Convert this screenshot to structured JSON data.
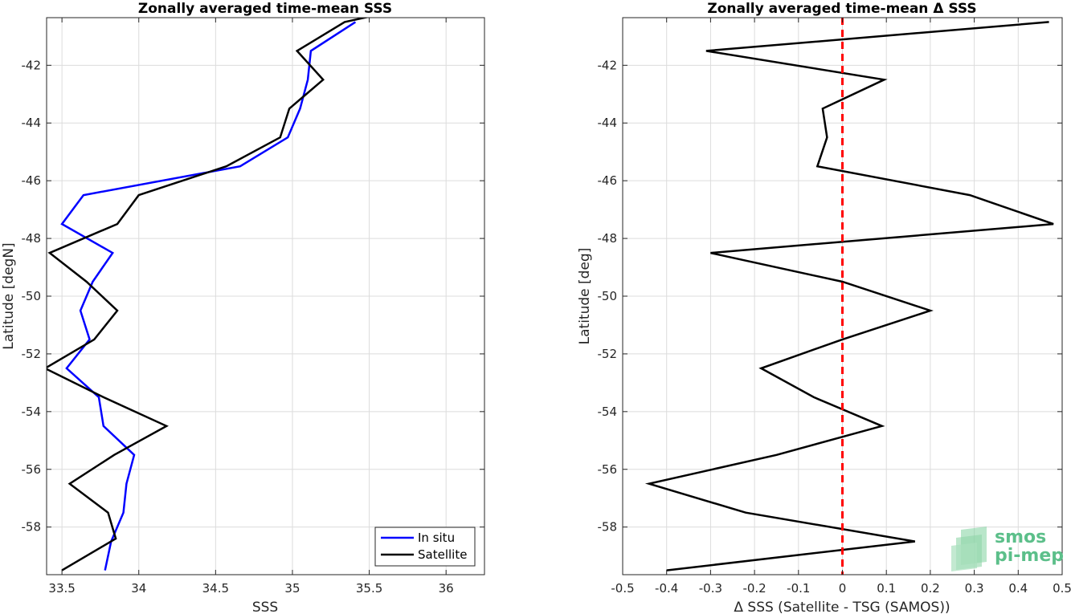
{
  "chart_data": [
    {
      "type": "line",
      "title": "Zonally averaged time-mean SSS",
      "xlabel": "SSS",
      "ylabel": "Latitude [degN]",
      "xlim": [
        33.4,
        36.25
      ],
      "ylim": [
        -59.65,
        -40.35
      ],
      "xticks": [
        33.5,
        34,
        34.5,
        35,
        35.5,
        36
      ],
      "xtick_labels": [
        "33.5",
        "34",
        "34.5",
        "35",
        "35.5",
        "36"
      ],
      "yticks": [
        -58,
        -56,
        -54,
        -52,
        -50,
        -48,
        -46,
        -44,
        -42
      ],
      "ytick_labels": [
        "-58",
        "-56",
        "-54",
        "-52",
        "-50",
        "-48",
        "-46",
        "-44",
        "-42"
      ],
      "grid": true,
      "legend_position": "bottom-right",
      "series": [
        {
          "name": "In situ",
          "color": "#0000ff",
          "points": [
            [
              35.41,
              -40.5
            ],
            [
              35.12,
              -41.5
            ],
            [
              35.1,
              -42.5
            ],
            [
              35.05,
              -43.5
            ],
            [
              34.97,
              -44.5
            ],
            [
              34.66,
              -45.5
            ],
            [
              33.64,
              -46.5
            ],
            [
              33.5,
              -47.5
            ],
            [
              33.83,
              -48.5
            ],
            [
              33.7,
              -49.5
            ],
            [
              33.62,
              -50.5
            ],
            [
              33.68,
              -51.5
            ],
            [
              33.53,
              -52.5
            ],
            [
              33.74,
              -53.5
            ],
            [
              33.77,
              -54.5
            ],
            [
              33.97,
              -55.5
            ],
            [
              33.92,
              -56.5
            ],
            [
              33.9,
              -57.5
            ],
            [
              33.82,
              -58.5
            ],
            [
              33.78,
              -59.5
            ]
          ]
        },
        {
          "name": "Satellite",
          "color": "#000000",
          "points": [
            [
              35.6,
              -40.2
            ],
            [
              35.34,
              -40.5
            ],
            [
              35.03,
              -41.5
            ],
            [
              35.2,
              -42.5
            ],
            [
              34.98,
              -43.5
            ],
            [
              34.92,
              -44.5
            ],
            [
              34.57,
              -45.5
            ],
            [
              34.0,
              -46.5
            ],
            [
              33.86,
              -47.5
            ],
            [
              33.42,
              -48.5
            ],
            [
              33.66,
              -49.5
            ],
            [
              33.86,
              -50.5
            ],
            [
              33.71,
              -51.5
            ],
            [
              33.39,
              -52.5
            ],
            [
              33.77,
              -53.5
            ],
            [
              34.18,
              -54.5
            ],
            [
              33.84,
              -55.5
            ],
            [
              33.55,
              -56.5
            ],
            [
              33.8,
              -57.5
            ],
            [
              33.85,
              -58.4
            ],
            [
              33.5,
              -59.5
            ]
          ]
        }
      ]
    },
    {
      "type": "line",
      "title": "Zonally averaged time-mean Δ SSS",
      "xlabel": "Δ SSS (Satellite - TSG (SAMOS))",
      "ylabel": "Latitude [deg]",
      "xlim": [
        -0.5,
        0.5
      ],
      "ylim": [
        -59.65,
        -40.35
      ],
      "xticks": [
        -0.5,
        -0.4,
        -0.3,
        -0.2,
        -0.1,
        0,
        0.1,
        0.2,
        0.3,
        0.4,
        0.5
      ],
      "xtick_labels": [
        "-0.5",
        "-0.4",
        "-0.3",
        "-0.2",
        "-0.1",
        "0",
        "0.1",
        "0.2",
        "0.3",
        "0.4",
        "0.5"
      ],
      "yticks": [
        -58,
        -56,
        -54,
        -52,
        -50,
        -48,
        -46,
        -44,
        -42
      ],
      "ytick_labels": [
        "-58",
        "-56",
        "-54",
        "-52",
        "-50",
        "-48",
        "-46",
        "-44",
        "-42"
      ],
      "grid": true,
      "reference_line": {
        "x": 0,
        "color": "#ff0000",
        "style": "dashed"
      },
      "series": [
        {
          "color": "#000000",
          "points": [
            [
              0.47,
              -40.5
            ],
            [
              -0.31,
              -41.5
            ],
            [
              0.095,
              -42.5
            ],
            [
              -0.045,
              -43.5
            ],
            [
              -0.035,
              -44.5
            ],
            [
              -0.057,
              -45.5
            ],
            [
              0.29,
              -46.5
            ],
            [
              0.48,
              -47.5
            ],
            [
              -0.3,
              -48.5
            ],
            [
              0.0,
              -49.5
            ],
            [
              0.2,
              -50.5
            ],
            [
              0.0,
              -51.5
            ],
            [
              -0.185,
              -52.5
            ],
            [
              -0.065,
              -53.5
            ],
            [
              0.09,
              -54.5
            ],
            [
              -0.15,
              -55.5
            ],
            [
              -0.44,
              -56.5
            ],
            [
              -0.22,
              -57.5
            ],
            [
              0.165,
              -58.5
            ],
            [
              -0.4,
              -59.5
            ]
          ]
        }
      ]
    }
  ],
  "logo": {
    "line1": "smos",
    "line2": "pi-mep",
    "color": "#5cbf8a"
  }
}
